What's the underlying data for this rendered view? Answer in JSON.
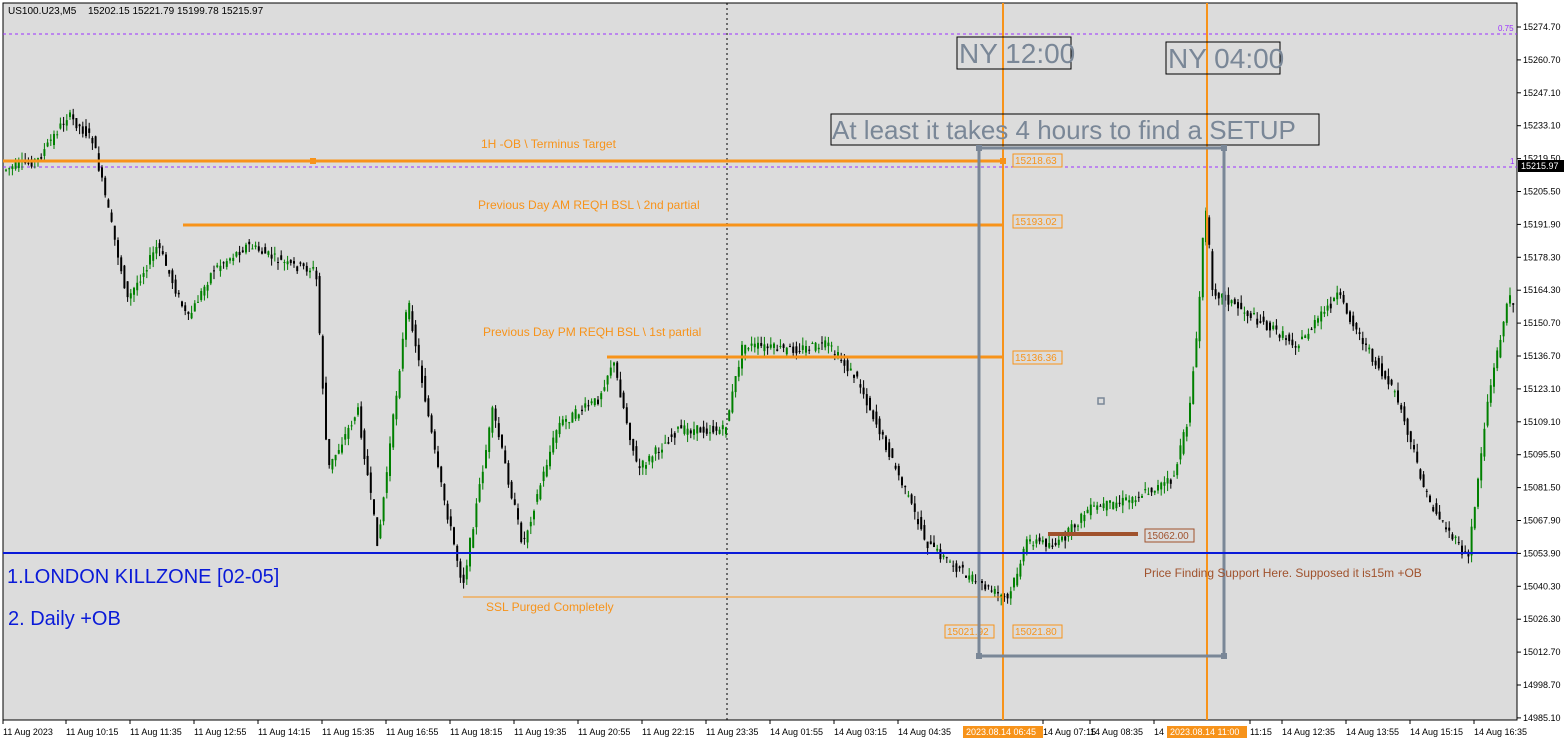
{
  "header": {
    "symbol": "US100.U23,M5",
    "ohlc": "15202.15 15221.79 15199.78 15215.97"
  },
  "colors": {
    "background": "#dcdcdc",
    "bull": "#008000",
    "bear": "#000000",
    "level": "#f7931a",
    "killzone": "#0a1ad8",
    "box": "#7a8797",
    "fib": "#9b30ff",
    "support": "#a0522d"
  },
  "price_axis": {
    "ticks": [
      "15274.70",
      "15260.70",
      "15247.10",
      "15233.10",
      "15219.50",
      "15205.50",
      "15191.90",
      "15178.30",
      "15164.30",
      "15150.70",
      "15136.70",
      "15123.10",
      "15109.10",
      "15095.50",
      "15081.50",
      "15067.90",
      "15053.90",
      "15040.30",
      "15026.30",
      "15012.70",
      "14998.70",
      "14985.10"
    ],
    "current_price": "15215.97",
    "fib_label": "0.75",
    "fib_label_2": "1"
  },
  "time_axis": {
    "ticks": [
      "11 Aug 2023",
      "11 Aug 10:15",
      "11 Aug 11:35",
      "11 Aug 12:55",
      "11 Aug 14:15",
      "11 Aug 15:35",
      "11 Aug 16:55",
      "11 Aug 18:15",
      "11 Aug 19:35",
      "11 Aug 20:55",
      "11 Aug 22:15",
      "11 Aug 23:35",
      "14 Aug 01:55",
      "14 Aug 03:15",
      "14 Aug 04:35",
      "14 Aug 07:15",
      "14 Aug 08:35",
      "14",
      "11:15",
      "14 Aug 12:35",
      "14 Aug 13:55",
      "14 Aug 15:15",
      "14 Aug 16:35"
    ],
    "highlight_1": "2023.08.14 06:45",
    "highlight_2": "2023.08.14 11:00"
  },
  "annotations": {
    "terminus_label": "1H -OB \\ Terminus Target",
    "terminus_price": "15218.63",
    "am_label": "Previous Day AM REQH BSL \\ 2nd partial",
    "am_price": "15193.02",
    "pm_label": "Previous Day PM REQH BSL \\ 1st partial",
    "pm_price": "15136.36",
    "ssl_label": "SSL Purged Completely",
    "ssl_price_left": "15021.92",
    "ssl_price_right": "15021.80",
    "support_price": "15062.00",
    "support_label": "Price Finding Support Here. Supposed it is15m +OB",
    "ny_1200": "NY 12:00",
    "ny_0400": "NY 04:00",
    "setup_text": "At least it takes 4 hours to find a SETUP",
    "killzone_1": "1.LONDON KILLZONE [02-05]",
    "killzone_2": "2. Daily +OB"
  }
}
